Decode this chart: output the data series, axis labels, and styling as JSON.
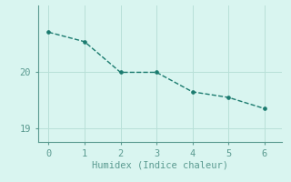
{
  "x": [
    0,
    1,
    2,
    3,
    4,
    5,
    6
  ],
  "y": [
    20.72,
    20.55,
    20.0,
    20.0,
    19.65,
    19.55,
    19.35
  ],
  "line_color": "#1a7a6e",
  "marker": "o",
  "marker_size": 2.5,
  "line_style": "--",
  "line_width": 1.0,
  "xlabel": "Humidex (Indice chaleur)",
  "xlabel_fontsize": 7.5,
  "background_color": "#d9f5f0",
  "grid_color": "#b8e0d8",
  "xlim": [
    -0.3,
    6.5
  ],
  "ylim": [
    18.75,
    21.2
  ],
  "yticks": [
    19,
    20
  ],
  "xticks": [
    0,
    1,
    2,
    3,
    4,
    5,
    6
  ],
  "tick_fontsize": 7.5,
  "spine_color": "#5a9a90",
  "axis_color": "#5a9a90"
}
